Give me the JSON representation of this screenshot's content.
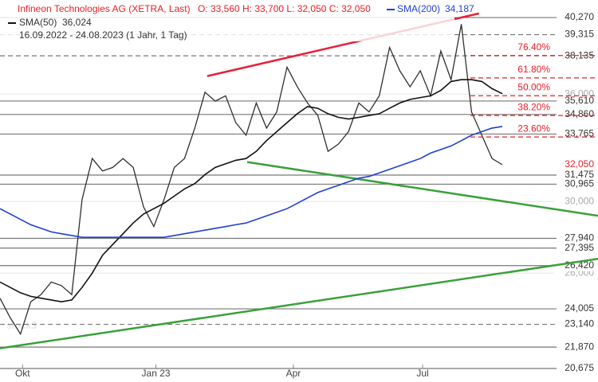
{
  "chart_data": {
    "type": "line",
    "title": "Infineon Technologies AG (XETRA, Last)",
    "ohlc_text": "O: 33,560  H: 33,700  L: 32,050  C: 32,050",
    "period": "16.09.2022 - 24.08.2023  (1 Jahr, 1 Tag)",
    "watermark": "stock3",
    "ylim": [
      19.92,
      41.25
    ],
    "xlim": [
      0,
      58.3
    ],
    "yticks": [
      {
        "value": 36.0,
        "label": "36,000"
      },
      {
        "value": 30.0,
        "label": "30,000"
      },
      {
        "value": 26.0,
        "label": "26,000"
      }
    ],
    "xticks": [
      {
        "value": 2.2,
        "label": "Okt"
      },
      {
        "value": 15.2,
        "label": "Jan 23"
      },
      {
        "value": 28.6,
        "label": "Apr"
      },
      {
        "value": 41.2,
        "label": "Jul"
      }
    ],
    "series": [
      {
        "name": "Kurs",
        "color": "#2f2f2f",
        "width": 1.3,
        "values": [
          24.6,
          23.5,
          22.6,
          24.4,
          24.8,
          25.5,
          25.3,
          24.8,
          30.1,
          32.4,
          31.7,
          31.9,
          32.4,
          31.9,
          29.7,
          28.6,
          30.1,
          31.9,
          32.4,
          34.1,
          36.1,
          35.6,
          35.9,
          34.4,
          33.7,
          35.5,
          34.1,
          35.0,
          37.5,
          36.4,
          35.5,
          34.8,
          32.8,
          33.2,
          33.9,
          35.5,
          35.0,
          35.9,
          38.6,
          37.3,
          36.4,
          37.3,
          35.9,
          38.4,
          36.8,
          39.9,
          35.0,
          33.7,
          32.4,
          32.05
        ]
      },
      {
        "name": "SMA(50)",
        "legend_value": "36,024",
        "color": "#111111",
        "width": 1.6,
        "values": [
          25.5,
          25.2,
          24.9,
          24.7,
          24.6,
          24.5,
          24.4,
          24.5,
          25.2,
          26.0,
          27.0,
          27.6,
          28.2,
          28.8,
          29.3,
          29.6,
          29.9,
          30.3,
          30.7,
          31.0,
          31.5,
          31.9,
          32.1,
          32.3,
          32.4,
          32.8,
          33.4,
          33.9,
          34.4,
          34.9,
          35.3,
          35.2,
          34.9,
          34.7,
          34.6,
          34.7,
          34.8,
          34.9,
          35.2,
          35.5,
          35.7,
          35.8,
          35.9,
          36.2,
          36.7,
          36.8,
          36.8,
          36.7,
          36.3,
          36.02
        ]
      },
      {
        "name": "SMA(200)",
        "legend_value": "34,187",
        "color": "#1f3fd6",
        "width": 1.6,
        "values": [
          29.6,
          29.3,
          29.0,
          28.7,
          28.5,
          28.3,
          28.2,
          28.1,
          28.0,
          28.0,
          28.0,
          28.0,
          28.0,
          28.0,
          28.0,
          28.0,
          28.0,
          28.1,
          28.2,
          28.3,
          28.4,
          28.5,
          28.6,
          28.7,
          28.8,
          29.0,
          29.2,
          29.4,
          29.6,
          29.9,
          30.2,
          30.5,
          30.7,
          30.9,
          31.1,
          31.3,
          31.4,
          31.6,
          31.8,
          32.0,
          32.2,
          32.4,
          32.7,
          32.9,
          33.1,
          33.4,
          33.7,
          33.9,
          34.1,
          34.19
        ]
      }
    ],
    "levels": [
      {
        "value": 40.27,
        "label": "40,270",
        "style": "solid"
      },
      {
        "value": 39.315,
        "label": "39,315",
        "style": "dashed"
      },
      {
        "value": 38.135,
        "label": "38,135",
        "style": "dashed"
      },
      {
        "value": 35.61,
        "label": "35,610",
        "style": "solid"
      },
      {
        "value": 34.86,
        "label": "34,860",
        "style": "solid"
      },
      {
        "value": 33.765,
        "label": "33,765",
        "style": "solid"
      },
      {
        "value": 31.475,
        "label": "31,475",
        "style": "solid"
      },
      {
        "value": 30.965,
        "label": "30,965",
        "style": "solid"
      },
      {
        "value": 27.94,
        "label": "27,940",
        "style": "solid"
      },
      {
        "value": 27.395,
        "label": "27,395",
        "style": "solid"
      },
      {
        "value": 26.42,
        "label": "26,420",
        "style": "solid"
      },
      {
        "value": 24.005,
        "label": "24,005",
        "style": "solid"
      },
      {
        "value": 23.14,
        "label": "23,140",
        "style": "dashed"
      },
      {
        "value": 21.87,
        "label": "21,870",
        "style": "solid"
      },
      {
        "value": 20.675,
        "label": "20,675",
        "style": "solid"
      }
    ],
    "last_price": {
      "value": 32.05,
      "label": "32,050",
      "color": "#e8202a"
    },
    "fib_levels": [
      {
        "label": "76.40%",
        "price": 38.15
      },
      {
        "label": "61.80%",
        "price": 36.9
      },
      {
        "label": "50.00%",
        "price": 35.9
      },
      {
        "label": "38.20%",
        "price": 34.8
      },
      {
        "label": "23.60%",
        "price": 33.6
      }
    ],
    "fib_color": "#e8202a",
    "trendlines": [
      {
        "color": "#e8203a",
        "x": [
          20.2,
          46.7
        ],
        "y": [
          37.0,
          40.5
        ]
      },
      {
        "color": "#3aa03a",
        "x": [
          24.1,
          58.3
        ],
        "y": [
          32.2,
          29.2
        ]
      },
      {
        "color": "#3aa03a",
        "x": [
          0,
          58.3
        ],
        "y": [
          21.8,
          26.8
        ]
      }
    ]
  }
}
